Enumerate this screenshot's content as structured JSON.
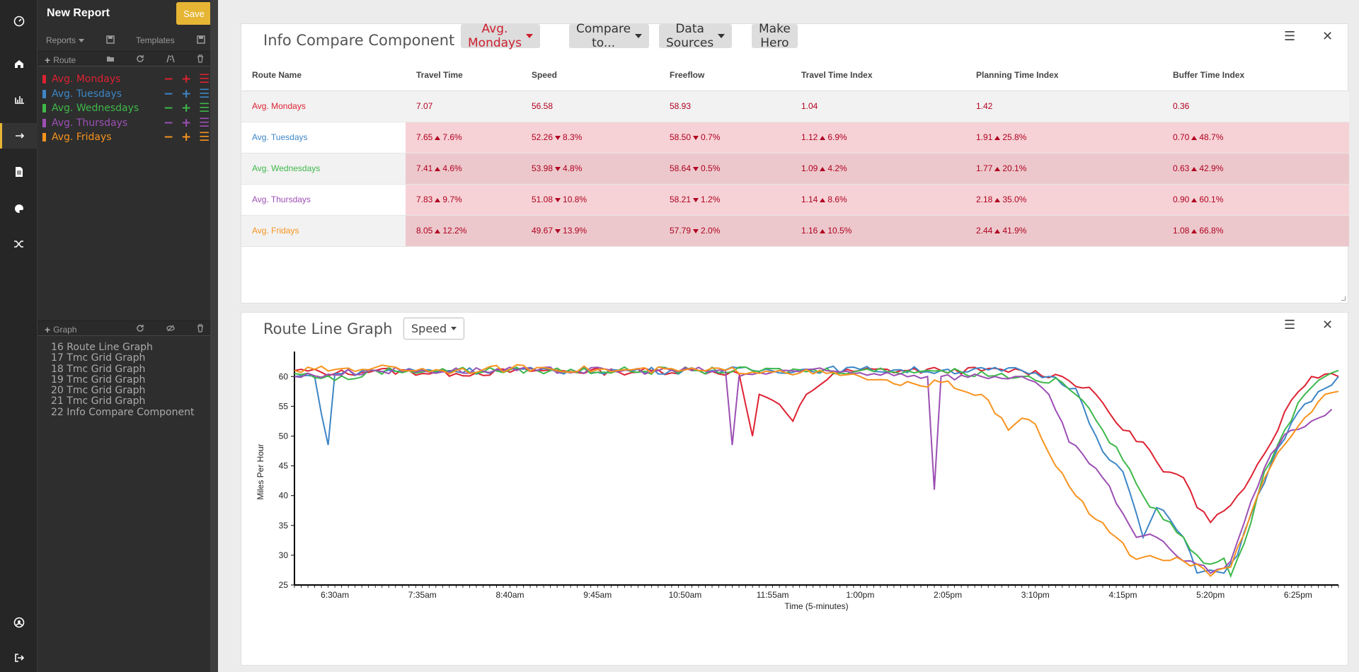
{
  "app": {
    "report_title": "New Report",
    "save_label": "Save"
  },
  "toolbar": {
    "reports_label": "Reports",
    "templates_label": "Templates",
    "route_label": "Route",
    "graph_label": "Graph"
  },
  "routes": [
    {
      "name": "Avg. Mondays",
      "color": "#dd2232"
    },
    {
      "name": "Avg. Tuesdays",
      "color": "#3d86c6"
    },
    {
      "name": "Avg. Wednesdays",
      "color": "#3eb84a"
    },
    {
      "name": "Avg. Thursdays",
      "color": "#9c4fb3"
    },
    {
      "name": "Avg. Fridays",
      "color": "#f7931e"
    }
  ],
  "route_actions": {
    "minus": "−",
    "plus": "+",
    "menu": "☰"
  },
  "graph_items": [
    "16 Route Line Graph",
    "17 Tmc Grid Graph",
    "18 Tmc Grid Graph",
    "19 Tmc Grid Graph",
    "20 Tmc Grid Graph",
    "21 Tmc Grid Graph",
    "22 Info Compare Component"
  ],
  "compare": {
    "title": "Info Compare Component",
    "base_button": "Avg. Mondays",
    "compare_button": "Compare to...",
    "sources_button": "Data Sources",
    "hero_button": "Make Hero",
    "columns": [
      "Route Name",
      "Travel Time",
      "Speed",
      "Freeflow",
      "Travel Time Index",
      "Planning Time Index",
      "Buffer Time Index"
    ],
    "rows": [
      {
        "name": "Avg. Mondays",
        "cells": [
          {
            "v": "7.07"
          },
          {
            "v": "56.58"
          },
          {
            "v": "58.93"
          },
          {
            "v": "1.04"
          },
          {
            "v": "1.42"
          },
          {
            "v": "0.36"
          }
        ]
      },
      {
        "name": "Avg. Tuesdays",
        "cells": [
          {
            "v": "7.65",
            "d": "up",
            "p": "7.6%"
          },
          {
            "v": "52.26",
            "d": "down",
            "p": "8.3%"
          },
          {
            "v": "58.50",
            "d": "down",
            "p": "0.7%"
          },
          {
            "v": "1.12",
            "d": "up",
            "p": "6.9%"
          },
          {
            "v": "1.91",
            "d": "up",
            "p": "25.8%"
          },
          {
            "v": "0.70",
            "d": "up",
            "p": "48.7%"
          }
        ]
      },
      {
        "name": "Avg. Wednesdays",
        "cells": [
          {
            "v": "7.41",
            "d": "up",
            "p": "4.6%"
          },
          {
            "v": "53.98",
            "d": "down",
            "p": "4.8%"
          },
          {
            "v": "58.64",
            "d": "down",
            "p": "0.5%"
          },
          {
            "v": "1.09",
            "d": "up",
            "p": "4.2%"
          },
          {
            "v": "1.77",
            "d": "up",
            "p": "20.1%"
          },
          {
            "v": "0.63",
            "d": "up",
            "p": "42.9%"
          }
        ]
      },
      {
        "name": "Avg. Thursdays",
        "cells": [
          {
            "v": "7.83",
            "d": "up",
            "p": "9.7%"
          },
          {
            "v": "51.08",
            "d": "down",
            "p": "10.8%"
          },
          {
            "v": "58.21",
            "d": "down",
            "p": "1.2%"
          },
          {
            "v": "1.14",
            "d": "up",
            "p": "8.6%"
          },
          {
            "v": "2.18",
            "d": "up",
            "p": "35.0%"
          },
          {
            "v": "0.90",
            "d": "up",
            "p": "60.1%"
          }
        ]
      },
      {
        "name": "Avg. Fridays",
        "cells": [
          {
            "v": "8.05",
            "d": "up",
            "p": "12.2%"
          },
          {
            "v": "49.67",
            "d": "down",
            "p": "13.9%"
          },
          {
            "v": "57.79",
            "d": "down",
            "p": "2.0%"
          },
          {
            "v": "1.16",
            "d": "up",
            "p": "10.5%"
          },
          {
            "v": "2.44",
            "d": "up",
            "p": "41.9%"
          },
          {
            "v": "1.08",
            "d": "up",
            "p": "66.8%"
          }
        ]
      }
    ]
  },
  "graph": {
    "title": "Route Line Graph",
    "metric_select": "Speed"
  },
  "chart_data": {
    "type": "line",
    "xlabel": "Time (5-minutes)",
    "ylabel": "Miles Per Hour",
    "ylim": [
      25,
      63
    ],
    "yticks": [
      25,
      30,
      35,
      40,
      45,
      50,
      55,
      60
    ],
    "x_tick_labels": [
      "6:30am",
      "7:35am",
      "8:40am",
      "9:45am",
      "10:50am",
      "11:55am",
      "1:00pm",
      "2:05pm",
      "3:10pm",
      "4:15pm",
      "5:20pm",
      "6:25pm"
    ],
    "x_start": "6:00am",
    "x_end": "6:55pm",
    "x_step_minutes": 5,
    "grid": false,
    "series": [
      {
        "name": "Avg. Mondays",
        "color": "#dd2232",
        "points": [
          [
            "6:00am",
            61
          ],
          [
            "6:30am",
            60.5
          ],
          [
            "7:00am",
            61
          ],
          [
            "8:00am",
            60.5
          ],
          [
            "9:00am",
            61
          ],
          [
            "10:00am",
            60.8
          ],
          [
            "11:00am",
            61
          ],
          [
            "11:30am",
            60.5
          ],
          [
            "11:40am",
            50
          ],
          [
            "11:45am",
            57
          ],
          [
            "11:55am",
            56
          ],
          [
            "12:10pm",
            52.5
          ],
          [
            "12:20pm",
            57
          ],
          [
            "12:40pm",
            60.5
          ],
          [
            "1:00pm",
            61
          ],
          [
            "2:00pm",
            61
          ],
          [
            "3:00pm",
            61
          ],
          [
            "3:30pm",
            60
          ],
          [
            "3:55pm",
            57
          ],
          [
            "4:15pm",
            51
          ],
          [
            "4:30pm",
            49
          ],
          [
            "4:45pm",
            44
          ],
          [
            "5:00pm",
            43
          ],
          [
            "5:10pm",
            38
          ],
          [
            "5:20pm",
            35.5
          ],
          [
            "5:40pm",
            40
          ],
          [
            "6:00pm",
            47
          ],
          [
            "6:20pm",
            56
          ],
          [
            "6:35pm",
            60
          ],
          [
            "6:50pm",
            60.5
          ],
          [
            "6:55pm",
            60
          ]
        ]
      },
      {
        "name": "Avg. Tuesdays",
        "color": "#3d86c6",
        "points": [
          [
            "6:00am",
            60
          ],
          [
            "6:15am",
            60
          ],
          [
            "6:25am",
            48.5
          ],
          [
            "6:30am",
            60.5
          ],
          [
            "7:00am",
            61
          ],
          [
            "9:00am",
            61
          ],
          [
            "11:00am",
            61
          ],
          [
            "1:00pm",
            61.2
          ],
          [
            "2:00pm",
            61
          ],
          [
            "3:00pm",
            61
          ],
          [
            "3:20pm",
            60
          ],
          [
            "3:40pm",
            58
          ],
          [
            "3:55pm",
            50
          ],
          [
            "4:05pm",
            46
          ],
          [
            "4:15pm",
            44
          ],
          [
            "4:25pm",
            37
          ],
          [
            "4:30pm",
            33
          ],
          [
            "4:40pm",
            38
          ],
          [
            "4:50pm",
            36
          ],
          [
            "5:00pm",
            33
          ],
          [
            "5:10pm",
            27
          ],
          [
            "5:20pm",
            27.5
          ],
          [
            "5:30pm",
            27
          ],
          [
            "5:40pm",
            30
          ],
          [
            "5:55pm",
            40
          ],
          [
            "6:10pm",
            48
          ],
          [
            "6:25pm",
            54
          ],
          [
            "6:45pm",
            58
          ],
          [
            "6:55pm",
            60
          ]
        ]
      },
      {
        "name": "Avg. Wednesdays",
        "color": "#3eb84a",
        "points": [
          [
            "6:00am",
            60.5
          ],
          [
            "6:40am",
            59.5
          ],
          [
            "7:00am",
            61
          ],
          [
            "9:00am",
            61
          ],
          [
            "11:00am",
            61
          ],
          [
            "1:00pm",
            61
          ],
          [
            "2:00pm",
            61
          ],
          [
            "3:00pm",
            60
          ],
          [
            "3:30pm",
            59
          ],
          [
            "3:45pm",
            56
          ],
          [
            "4:00pm",
            51
          ],
          [
            "4:15pm",
            46
          ],
          [
            "4:30pm",
            40
          ],
          [
            "4:45pm",
            36
          ],
          [
            "5:00pm",
            33
          ],
          [
            "5:10pm",
            30
          ],
          [
            "5:20pm",
            28.5
          ],
          [
            "5:30pm",
            29.5
          ],
          [
            "5:35pm",
            26.5
          ],
          [
            "5:45pm",
            32
          ],
          [
            "6:00pm",
            44
          ],
          [
            "6:15pm",
            51
          ],
          [
            "6:30pm",
            57
          ],
          [
            "6:45pm",
            60
          ],
          [
            "6:55pm",
            61
          ]
        ]
      },
      {
        "name": "Avg. Thursdays",
        "color": "#9c4fb3",
        "points": [
          [
            "6:00am",
            60
          ],
          [
            "7:00am",
            61
          ],
          [
            "9:00am",
            61
          ],
          [
            "10:30am",
            61
          ],
          [
            "11:20am",
            61
          ],
          [
            "11:25am",
            48.5
          ],
          [
            "11:30am",
            60
          ],
          [
            "12:00pm",
            61
          ],
          [
            "1:30pm",
            60.5
          ],
          [
            "1:50pm",
            60
          ],
          [
            "1:55pm",
            41
          ],
          [
            "2:00pm",
            60
          ],
          [
            "2:30pm",
            60
          ],
          [
            "3:00pm",
            60
          ],
          [
            "3:20pm",
            57
          ],
          [
            "3:35pm",
            49
          ],
          [
            "3:45pm",
            47
          ],
          [
            "4:00pm",
            43
          ],
          [
            "4:15pm",
            37
          ],
          [
            "4:25pm",
            33
          ],
          [
            "4:40pm",
            33
          ],
          [
            "4:50pm",
            31
          ],
          [
            "5:00pm",
            29
          ],
          [
            "5:10pm",
            28.5
          ],
          [
            "5:20pm",
            27
          ],
          [
            "5:35pm",
            29
          ],
          [
            "5:50pm",
            39
          ],
          [
            "6:05pm",
            47
          ],
          [
            "6:20pm",
            51
          ],
          [
            "6:35pm",
            52.5
          ],
          [
            "6:50pm",
            54.5
          ]
        ]
      },
      {
        "name": "Avg. Fridays",
        "color": "#f7931e",
        "points": [
          [
            "6:00am",
            61
          ],
          [
            "7:00am",
            61.5
          ],
          [
            "8:00am",
            61
          ],
          [
            "9:00am",
            61.5
          ],
          [
            "10:00am",
            61
          ],
          [
            "11:00am",
            61
          ],
          [
            "12:00pm",
            61
          ],
          [
            "1:00pm",
            60
          ],
          [
            "1:30pm",
            58.5
          ],
          [
            "2:00pm",
            59
          ],
          [
            "2:30pm",
            57
          ],
          [
            "2:50pm",
            51
          ],
          [
            "3:00pm",
            53
          ],
          [
            "3:10pm",
            52
          ],
          [
            "3:25pm",
            45
          ],
          [
            "3:40pm",
            40
          ],
          [
            "3:55pm",
            36
          ],
          [
            "4:10pm",
            33
          ],
          [
            "4:20pm",
            30
          ],
          [
            "4:40pm",
            29.5
          ],
          [
            "5:00pm",
            29
          ],
          [
            "5:10pm",
            28.5
          ],
          [
            "5:20pm",
            26.5
          ],
          [
            "5:35pm",
            28
          ],
          [
            "5:50pm",
            37
          ],
          [
            "6:05pm",
            45
          ],
          [
            "6:20pm",
            50
          ],
          [
            "6:35pm",
            54
          ],
          [
            "6:45pm",
            57
          ],
          [
            "6:55pm",
            57.5
          ]
        ]
      }
    ]
  }
}
